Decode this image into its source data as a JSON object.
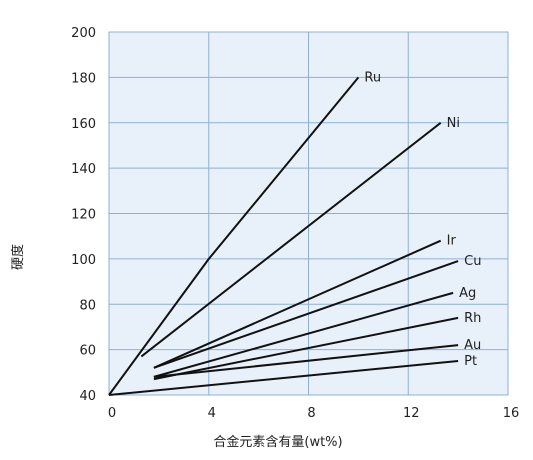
{
  "chart_data": {
    "type": "line",
    "title": "",
    "xlabel": "合金元素含有量(wt%)",
    "ylabel": "硬度",
    "xlim": [
      0,
      16
    ],
    "ylim": [
      40,
      200
    ],
    "xticks": [
      0,
      4,
      8,
      12,
      16
    ],
    "yticks": [
      40,
      60,
      80,
      100,
      120,
      140,
      160,
      180,
      200
    ],
    "grid": true,
    "legend": "none",
    "colors": {
      "plot_background": "#e8f0fa",
      "grid": "#8fafd8",
      "line": "#111111"
    },
    "series": [
      {
        "name": "Ru",
        "points": [
          [
            0,
            40
          ],
          [
            4,
            100
          ],
          [
            10,
            180
          ]
        ]
      },
      {
        "name": "Ni",
        "points": [
          [
            1.3,
            57
          ],
          [
            13.3,
            160
          ]
        ]
      },
      {
        "name": "Ir",
        "points": [
          [
            1.8,
            52
          ],
          [
            13.3,
            108
          ]
        ]
      },
      {
        "name": "Cu",
        "points": [
          [
            1.8,
            52
          ],
          [
            14,
            99
          ]
        ]
      },
      {
        "name": "Ag",
        "points": [
          [
            1.8,
            48
          ],
          [
            13.8,
            85
          ]
        ]
      },
      {
        "name": "Rh",
        "points": [
          [
            1.8,
            47
          ],
          [
            14,
            74
          ]
        ]
      },
      {
        "name": "Au",
        "points": [
          [
            1.8,
            48
          ],
          [
            14,
            62
          ]
        ]
      },
      {
        "name": "Pt",
        "points": [
          [
            0,
            40
          ],
          [
            14,
            55
          ]
        ]
      }
    ]
  }
}
